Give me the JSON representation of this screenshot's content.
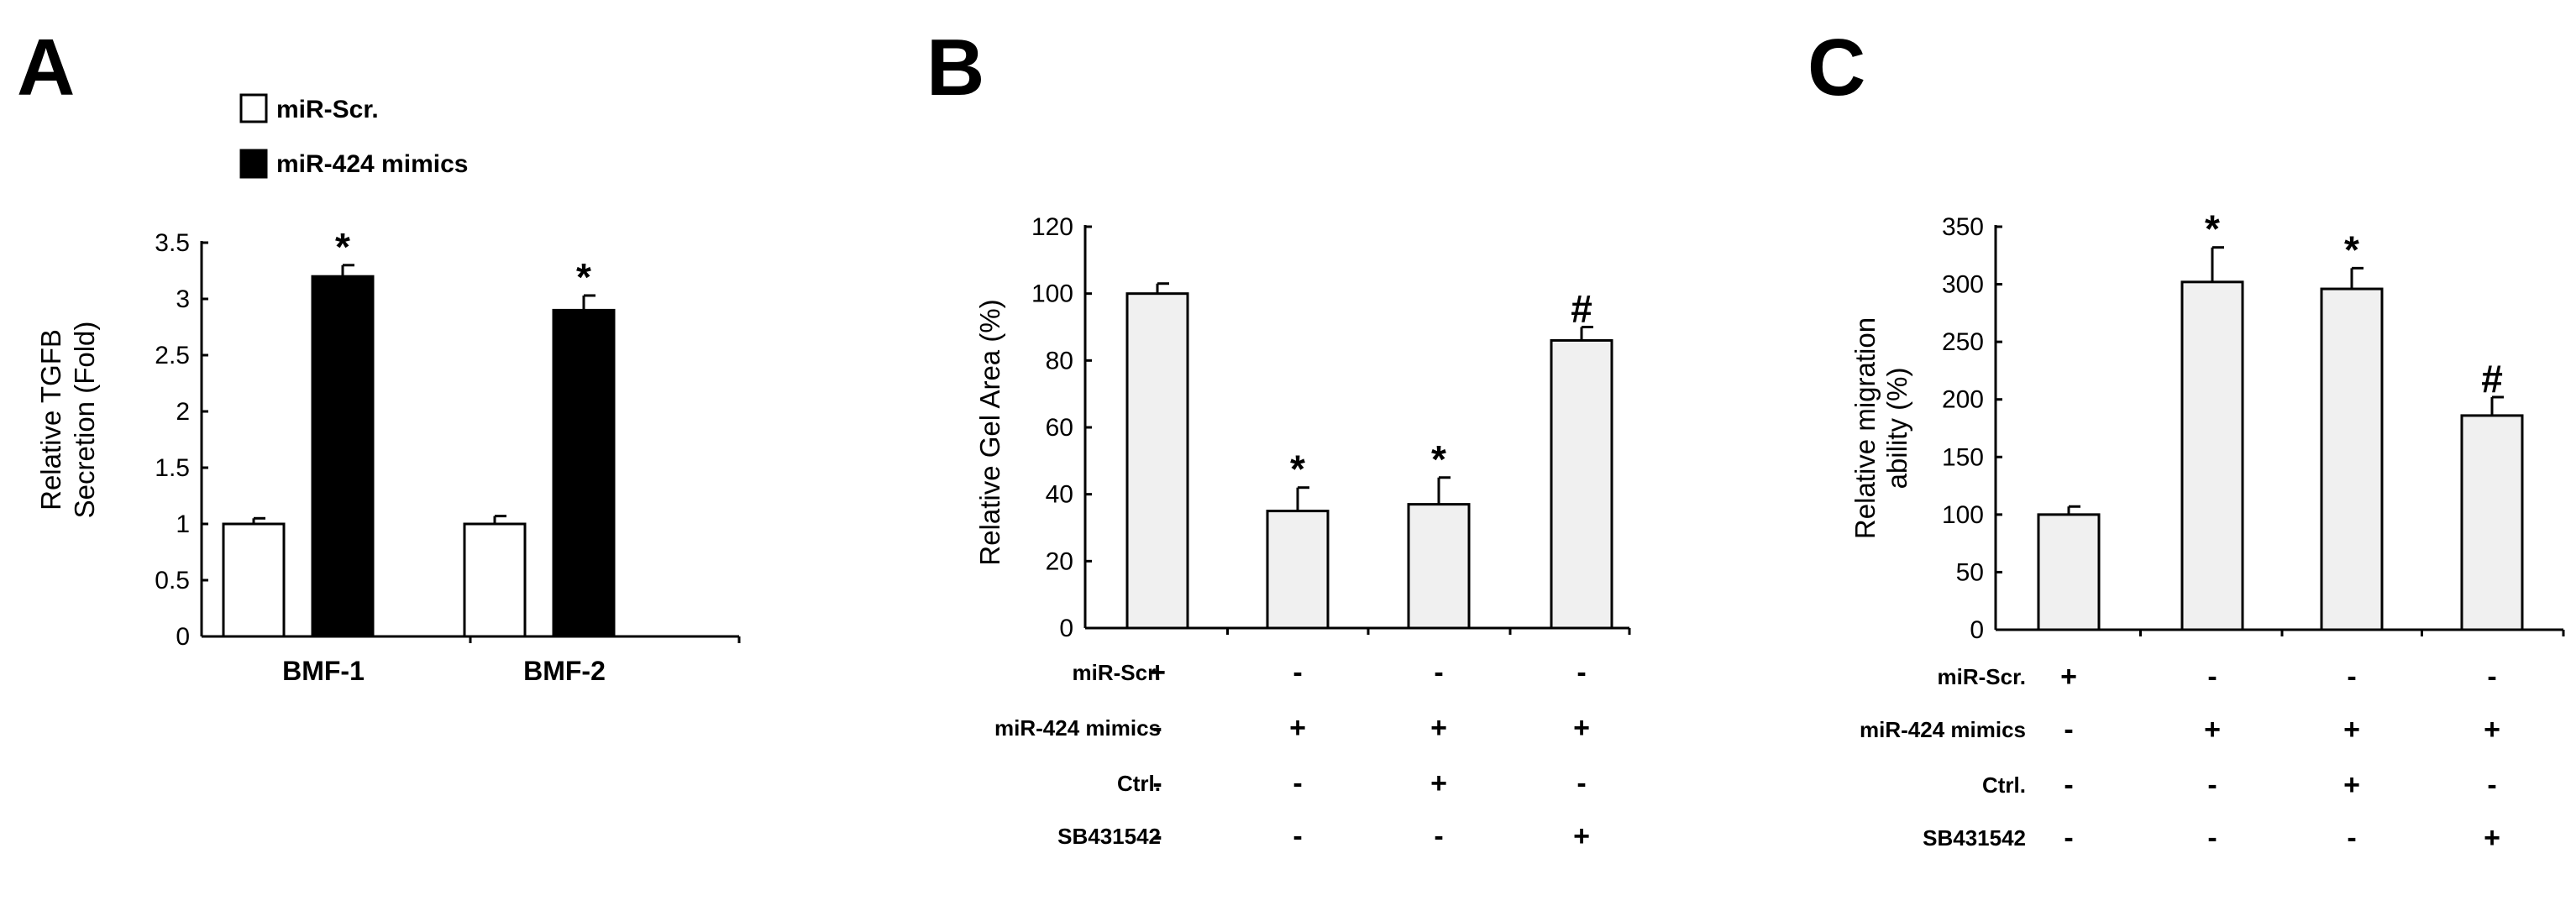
{
  "chart_data": [
    {
      "panel": "A",
      "type": "bar",
      "categories": [
        "BMF-1",
        "BMF-2"
      ],
      "series": [
        {
          "name": "miR-Scr.",
          "color": "#ffffff",
          "values": [
            1.0,
            1.0
          ],
          "errors": [
            0.05,
            0.07
          ]
        },
        {
          "name": "miR-424 mimics",
          "color": "#000000",
          "values": [
            3.2,
            2.9
          ],
          "errors": [
            0.1,
            0.13
          ]
        }
      ],
      "annotations": [
        {
          "category": 0,
          "series": 1,
          "text": "*"
        },
        {
          "category": 1,
          "series": 1,
          "text": "*"
        }
      ],
      "ylabel_lines": [
        "Relative TGFB",
        "Secretion (Fold)"
      ],
      "ylim": [
        0,
        3.5
      ],
      "yticks": [
        0,
        0.5,
        1,
        1.5,
        2,
        2.5,
        3,
        3.5
      ],
      "ytick_labels": [
        "0",
        "0.5",
        "1",
        "1.5",
        "2",
        "2.5",
        "3",
        "3.5"
      ],
      "legend_position": "top-left"
    },
    {
      "panel": "B",
      "type": "bar",
      "bar_color": "#f0f0f0",
      "values": [
        100,
        35,
        37,
        86
      ],
      "errors": [
        3,
        7,
        8,
        4
      ],
      "annotations": [
        "",
        "*",
        "*",
        "#"
      ],
      "ylabel_lines": [
        "Relative Gel Area (%)"
      ],
      "ylim": [
        0,
        120
      ],
      "yticks": [
        0,
        20,
        40,
        60,
        80,
        100,
        120
      ],
      "ytick_labels": [
        "0",
        "20",
        "40",
        "60",
        "80",
        "100",
        "120"
      ],
      "conditions": [
        {
          "label": "miR-Scr.",
          "signs": [
            "+",
            "-",
            "-",
            "-"
          ]
        },
        {
          "label": "miR-424 mimics",
          "signs": [
            "-",
            "+",
            "+",
            "+"
          ]
        },
        {
          "label": "Ctrl.",
          "signs": [
            "-",
            "-",
            "+",
            "-"
          ]
        },
        {
          "label": "SB431542",
          "signs": [
            "-",
            "-",
            "-",
            "+"
          ]
        }
      ]
    },
    {
      "panel": "C",
      "type": "bar",
      "bar_color": "#f0f0f0",
      "values": [
        100,
        302,
        296,
        186
      ],
      "errors": [
        7,
        30,
        18,
        16
      ],
      "annotations": [
        "",
        "*",
        "*",
        "#"
      ],
      "ylabel_lines": [
        "Relative migration",
        "ability (%)"
      ],
      "ylim": [
        0,
        350
      ],
      "yticks": [
        0,
        50,
        100,
        150,
        200,
        250,
        300,
        350
      ],
      "ytick_labels": [
        "0",
        "50",
        "100",
        "150",
        "200",
        "250",
        "300",
        "350"
      ],
      "conditions": [
        {
          "label": "miR-Scr.",
          "signs": [
            "+",
            "-",
            "-",
            "-"
          ]
        },
        {
          "label": "miR-424 mimics",
          "signs": [
            "-",
            "+",
            "+",
            "+"
          ]
        },
        {
          "label": "Ctrl.",
          "signs": [
            "-",
            "-",
            "+",
            "-"
          ]
        },
        {
          "label": "SB431542",
          "signs": [
            "-",
            "-",
            "-",
            "+"
          ]
        }
      ]
    }
  ]
}
